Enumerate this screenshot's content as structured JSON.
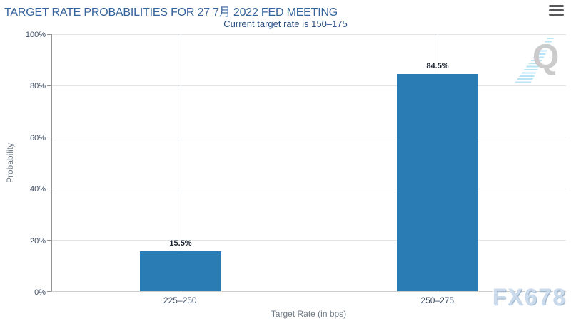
{
  "header": {
    "title": "TARGET RATE PROBABILITIES FOR 27 7月 2022 FED MEETING"
  },
  "subtitle": "Current target rate is 150–175",
  "watermarks": {
    "logo_letter": "Q",
    "brand": "FX678"
  },
  "colors": {
    "title": "#35639b",
    "subtitle": "#274f86",
    "bar": "#2a7cb4",
    "grid": "#e2e5e8",
    "axis_y": "#939393",
    "axis_x": "#cccccc",
    "tick_label": "#3d4c63",
    "value_label": "#1c2430",
    "axis_title": "#6f7a85",
    "menu": "#58585a",
    "watermark_logo": "#cbcbcb",
    "watermark_stripes": "#b5e3f5",
    "watermark_brand": "#ccdbeb"
  },
  "chart_data": {
    "type": "bar",
    "title": "TARGET RATE PROBABILITIES FOR 27 7月 2022 FED MEETING",
    "subtitle": "Current target rate is 150–175",
    "categories": [
      "225–250",
      "250–275"
    ],
    "values": [
      15.5,
      84.5
    ],
    "value_labels": [
      "15.5%",
      "84.5%"
    ],
    "xlabel": "Target Rate (in bps)",
    "ylabel": "Probability",
    "ylim": [
      0,
      100
    ],
    "ytick_step": 20,
    "yticks": [
      "0%",
      "20%",
      "40%",
      "60%",
      "80%",
      "100%"
    ],
    "bar_width_pct": 15.7,
    "grid": true,
    "legend": "none"
  }
}
